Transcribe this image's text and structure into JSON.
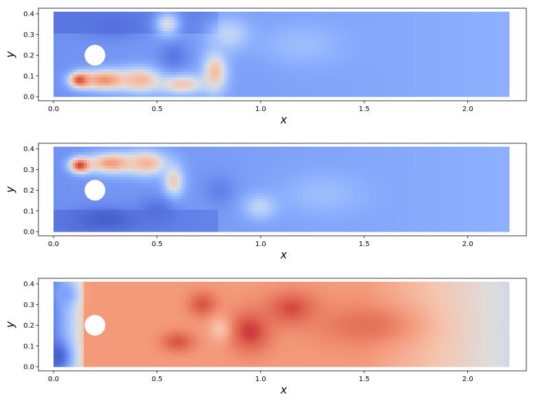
{
  "chart_data": [
    {
      "type": "heatmap",
      "title": "",
      "xlabel": "x",
      "ylabel": "y",
      "xlim": [
        0.0,
        2.2
      ],
      "ylim": [
        0.0,
        0.41
      ],
      "xticks": [
        "0.0",
        "0.5",
        "1.0",
        "1.5",
        "2.0"
      ],
      "yticks": [
        "0.0",
        "0.1",
        "0.2",
        "0.3",
        "0.4"
      ],
      "obstacle": {
        "shape": "circle",
        "cx": 0.2,
        "cy": 0.2,
        "r": 0.05
      },
      "colormap": "coolwarm",
      "features": [
        {
          "x": 0.13,
          "y": 0.08,
          "v": 0.97,
          "sx": 0.05,
          "sy": 0.035
        },
        {
          "x": 0.25,
          "y": 0.08,
          "v": 0.75,
          "sx": 0.12,
          "sy": 0.05
        },
        {
          "x": 0.42,
          "y": 0.08,
          "v": 0.65,
          "sx": 0.1,
          "sy": 0.06
        },
        {
          "x": 0.62,
          "y": 0.06,
          "v": 0.6,
          "sx": 0.12,
          "sy": 0.05
        },
        {
          "x": 0.78,
          "y": 0.12,
          "v": 0.62,
          "sx": 0.06,
          "sy": 0.1
        },
        {
          "x": 0.28,
          "y": 0.34,
          "v": 0.1,
          "sx": 0.15,
          "sy": 0.06
        },
        {
          "x": 0.58,
          "y": 0.2,
          "v": 0.12,
          "sx": 0.07,
          "sy": 0.07
        },
        {
          "x": 0.55,
          "y": 0.35,
          "v": 0.5,
          "sx": 0.06,
          "sy": 0.06
        },
        {
          "x": 0.85,
          "y": 0.3,
          "v": 0.45,
          "sx": 0.1,
          "sy": 0.08
        },
        {
          "x": 1.2,
          "y": 0.25,
          "v": 0.35,
          "sx": 0.2,
          "sy": 0.1
        }
      ]
    },
    {
      "type": "heatmap",
      "title": "",
      "xlabel": "x",
      "ylabel": "y",
      "xlim": [
        0.0,
        2.2
      ],
      "ylim": [
        0.0,
        0.41
      ],
      "xticks": [
        "0.0",
        "0.5",
        "1.0",
        "1.5",
        "2.0"
      ],
      "yticks": [
        "0.0",
        "0.1",
        "0.2",
        "0.3",
        "0.4"
      ],
      "obstacle": {
        "shape": "circle",
        "cx": 0.2,
        "cy": 0.2,
        "r": 0.05
      },
      "colormap": "coolwarm",
      "features": [
        {
          "x": 0.13,
          "y": 0.32,
          "v": 0.97,
          "sx": 0.05,
          "sy": 0.035
        },
        {
          "x": 0.28,
          "y": 0.33,
          "v": 0.72,
          "sx": 0.12,
          "sy": 0.05
        },
        {
          "x": 0.45,
          "y": 0.33,
          "v": 0.65,
          "sx": 0.1,
          "sy": 0.06
        },
        {
          "x": 0.58,
          "y": 0.24,
          "v": 0.58,
          "sx": 0.05,
          "sy": 0.08
        },
        {
          "x": 0.25,
          "y": 0.06,
          "v": 0.05,
          "sx": 0.15,
          "sy": 0.06
        },
        {
          "x": 0.5,
          "y": 0.1,
          "v": 0.1,
          "sx": 0.1,
          "sy": 0.07
        },
        {
          "x": 0.8,
          "y": 0.2,
          "v": 0.15,
          "sx": 0.08,
          "sy": 0.08
        },
        {
          "x": 1.0,
          "y": 0.12,
          "v": 0.45,
          "sx": 0.08,
          "sy": 0.06
        },
        {
          "x": 1.3,
          "y": 0.18,
          "v": 0.35,
          "sx": 0.2,
          "sy": 0.1
        }
      ]
    },
    {
      "type": "heatmap",
      "title": "",
      "xlabel": "x",
      "ylabel": "y",
      "xlim": [
        0.0,
        2.2
      ],
      "ylim": [
        0.0,
        0.41
      ],
      "xticks": [
        "0.0",
        "0.5",
        "1.0",
        "1.5",
        "2.0"
      ],
      "yticks": [
        "0.0",
        "0.1",
        "0.2",
        "0.3",
        "0.4"
      ],
      "obstacle": {
        "shape": "circle",
        "cx": 0.2,
        "cy": 0.2,
        "r": 0.05
      },
      "colormap": "coolwarm",
      "features": [
        {
          "x": 0.02,
          "y": 0.05,
          "v": 0.05,
          "sx": 0.06,
          "sy": 0.07
        },
        {
          "x": 0.05,
          "y": 0.35,
          "v": 0.25,
          "sx": 0.06,
          "sy": 0.05
        },
        {
          "x": 0.6,
          "y": 0.12,
          "v": 0.88,
          "sx": 0.08,
          "sy": 0.05
        },
        {
          "x": 0.72,
          "y": 0.3,
          "v": 0.88,
          "sx": 0.07,
          "sy": 0.06
        },
        {
          "x": 0.95,
          "y": 0.17,
          "v": 0.92,
          "sx": 0.1,
          "sy": 0.1
        },
        {
          "x": 1.15,
          "y": 0.28,
          "v": 0.9,
          "sx": 0.12,
          "sy": 0.08
        },
        {
          "x": 0.8,
          "y": 0.18,
          "v": 0.6,
          "sx": 0.05,
          "sy": 0.06
        },
        {
          "x": 1.5,
          "y": 0.2,
          "v": 0.82,
          "sx": 0.25,
          "sy": 0.1
        }
      ]
    }
  ]
}
